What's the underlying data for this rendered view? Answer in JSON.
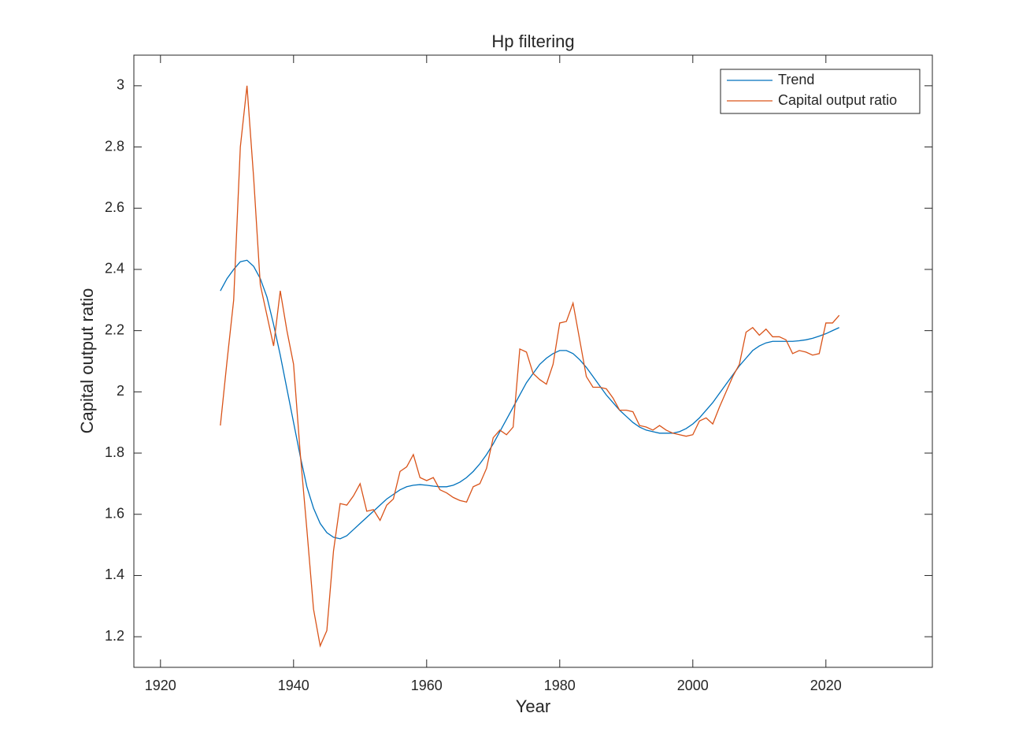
{
  "chart_data": {
    "type": "line",
    "title": "Hp filtering",
    "x_label": "Year",
    "y_label": "Capital output ratio",
    "x": [
      1929,
      1930,
      1931,
      1932,
      1933,
      1934,
      1935,
      1936,
      1937,
      1938,
      1939,
      1940,
      1941,
      1942,
      1943,
      1944,
      1945,
      1946,
      1947,
      1948,
      1949,
      1950,
      1951,
      1952,
      1953,
      1954,
      1955,
      1956,
      1957,
      1958,
      1959,
      1960,
      1961,
      1962,
      1963,
      1964,
      1965,
      1966,
      1967,
      1968,
      1969,
      1970,
      1971,
      1972,
      1973,
      1974,
      1975,
      1976,
      1977,
      1978,
      1979,
      1980,
      1981,
      1982,
      1983,
      1984,
      1985,
      1986,
      1987,
      1988,
      1989,
      1990,
      1991,
      1992,
      1993,
      1994,
      1995,
      1996,
      1997,
      1998,
      1999,
      2000,
      2001,
      2002,
      2003,
      2004,
      2005,
      2006,
      2007,
      2008,
      2009,
      2010,
      2011,
      2012,
      2013,
      2014,
      2015,
      2016,
      2017,
      2018,
      2019,
      2020,
      2021,
      2022
    ],
    "series": [
      {
        "name": "Trend",
        "color": "#0072bd",
        "values": [
          2.33,
          2.37,
          2.4,
          2.425,
          2.43,
          2.41,
          2.37,
          2.31,
          2.22,
          2.12,
          2.01,
          1.9,
          1.79,
          1.69,
          1.62,
          1.57,
          1.54,
          1.525,
          1.52,
          1.53,
          1.55,
          1.57,
          1.59,
          1.61,
          1.63,
          1.65,
          1.665,
          1.68,
          1.69,
          1.695,
          1.697,
          1.695,
          1.692,
          1.69,
          1.69,
          1.695,
          1.705,
          1.72,
          1.74,
          1.765,
          1.795,
          1.83,
          1.87,
          1.91,
          1.95,
          1.99,
          2.03,
          2.06,
          2.09,
          2.11,
          2.125,
          2.135,
          2.135,
          2.125,
          2.105,
          2.08,
          2.05,
          2.02,
          1.99,
          1.965,
          1.94,
          1.92,
          1.9,
          1.885,
          1.875,
          1.87,
          1.865,
          1.865,
          1.865,
          1.87,
          1.88,
          1.895,
          1.915,
          1.94,
          1.965,
          1.995,
          2.025,
          2.055,
          2.085,
          2.11,
          2.135,
          2.15,
          2.16,
          2.165,
          2.165,
          2.165,
          2.165,
          2.167,
          2.17,
          2.175,
          2.182,
          2.19,
          2.2,
          2.21
        ]
      },
      {
        "name": "Capital output ratio",
        "color": "#d95319",
        "values": [
          1.89,
          2.1,
          2.3,
          2.8,
          3.0,
          2.7,
          2.35,
          2.25,
          2.15,
          2.33,
          2.2,
          2.09,
          1.8,
          1.55,
          1.29,
          1.17,
          1.22,
          1.48,
          1.635,
          1.63,
          1.66,
          1.7,
          1.61,
          1.615,
          1.58,
          1.63,
          1.65,
          1.74,
          1.755,
          1.795,
          1.72,
          1.71,
          1.72,
          1.68,
          1.67,
          1.655,
          1.645,
          1.64,
          1.69,
          1.7,
          1.75,
          1.85,
          1.875,
          1.86,
          1.885,
          2.14,
          2.13,
          2.06,
          2.04,
          2.025,
          2.09,
          2.225,
          2.23,
          2.29,
          2.17,
          2.05,
          2.015,
          2.015,
          2.01,
          1.98,
          1.94,
          1.94,
          1.935,
          1.89,
          1.885,
          1.875,
          1.89,
          1.875,
          1.865,
          1.86,
          1.855,
          1.86,
          1.905,
          1.915,
          1.895,
          1.95,
          2.0,
          2.05,
          2.09,
          2.195,
          2.21,
          2.185,
          2.205,
          2.18,
          2.18,
          2.17,
          2.125,
          2.135,
          2.13,
          2.12,
          2.125,
          2.225,
          2.225,
          2.25
        ]
      }
    ],
    "xlim": [
      1916,
      2036
    ],
    "xticks": [
      1920,
      1940,
      1960,
      1980,
      2000,
      2020
    ],
    "ylim": [
      1.1,
      3.1
    ],
    "yticks": [
      1.2,
      1.4,
      1.6,
      1.8,
      2,
      2.2,
      2.4,
      2.6,
      2.8,
      3
    ],
    "legend": "northeast",
    "grid": false
  }
}
